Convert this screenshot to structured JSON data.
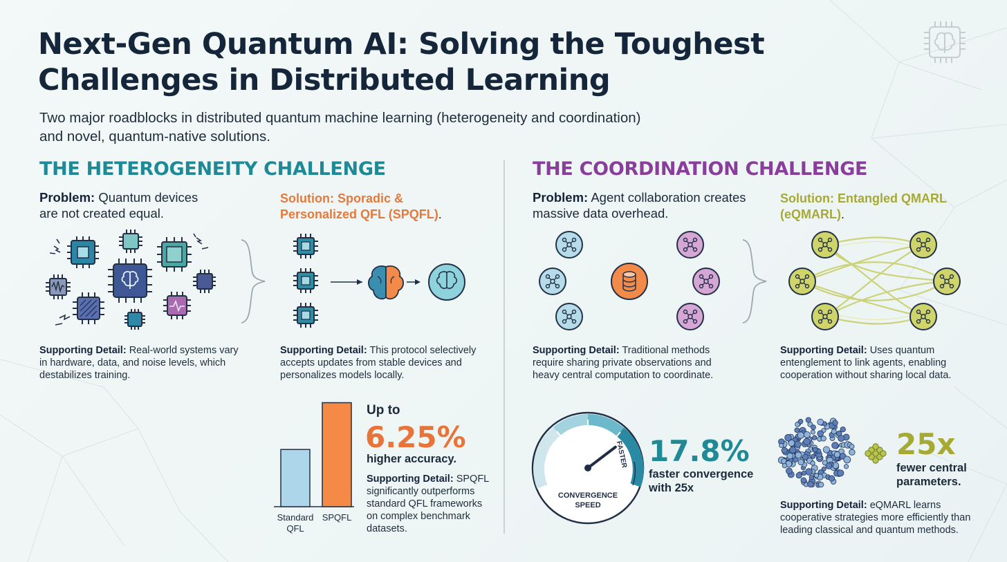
{
  "header": {
    "title": "Next-Gen Quantum AI: Solving the Toughest Challenges in Distributed Learning",
    "subtitle": "Two major roadblocks in distributed quantum machine learning (heterogeneity and coordination) and novel, quantum-native solutions."
  },
  "heterogeneity": {
    "title": "THE HETEROGENEITY CHALLENGE",
    "problem": {
      "label": "Problem:",
      "text": "Quantum devices are not created equal."
    },
    "problem_detail": {
      "label": "Supporting Detail:",
      "text": "Real-world systems vary in hardware, data, and noise levels, which destabilizes training."
    },
    "solution": {
      "title": "Solution: Sporadic & Personalized QFL (SPQFL)",
      "end": "."
    },
    "solution_detail": {
      "label": "Supporting Detail:",
      "text": "This protocol selectively accepts updates from stable devices and personalizes models locally."
    },
    "stat": {
      "prefix": "Up to",
      "value": "6.25%",
      "label": "higher accuracy."
    },
    "stat_detail": {
      "label": "Supporting Detail:",
      "text": "SPQFL significantly outperforms standard QFL frameworks on complex benchmark datasets."
    }
  },
  "coordination": {
    "title": "THE COORDINATION CHALLENGE",
    "problem": {
      "label": "Problem:",
      "text": "Agent collaboration creates massive data overhead."
    },
    "problem_detail": {
      "label": "Supporting Detail:",
      "text": "Traditional methods require sharing private observations and heavy central computation to coordinate."
    },
    "solution": {
      "title": "Solution: Entangled QMARL (eQMARL)",
      "end": "."
    },
    "solution_detail": {
      "label": "Supporting Detail:",
      "text": "Uses quantum entenglement to link agents, enabling cooperation without sharing local data."
    },
    "gauge": {
      "label_line1": "CONVERGENCE",
      "label_line2": "SPEED",
      "arrow_label": "FASTER",
      "level": 0.72
    },
    "stat1": {
      "value": "17.8%",
      "label_line1": "faster convergence",
      "label_line2": "with 25x"
    },
    "stat2": {
      "value": "25x",
      "label_line1": "fewer central",
      "label_line2": "parameters."
    },
    "stat2_detail": {
      "label": "Supporting Detail:",
      "text": "eQMARL learns cooperative strategies more efficiently than leading classical and quantum methods."
    }
  },
  "chart_data": {
    "type": "bar",
    "categories": [
      "Standard QFL",
      "SPQFL"
    ],
    "category_lines": [
      [
        "Standard",
        "QFL"
      ],
      [
        "SPQFL"
      ]
    ],
    "values": [
      0.55,
      1.0
    ],
    "ylim": [
      0,
      1.05
    ],
    "colors": [
      "#aed6ea",
      "#f58a46"
    ],
    "grid": false
  },
  "colors": {
    "teal": "#1f8a96",
    "purple": "#8a3e9c",
    "orange": "#e37a3c",
    "olive": "#a7a935",
    "navy": "#15263a"
  },
  "icons": [
    "chip-icon",
    "brain-chip-icon",
    "noise-spark-icon",
    "brain-icon",
    "agent-node-icon",
    "database-icon",
    "brace-icon",
    "gauge-icon",
    "parameter-cluster-icon"
  ]
}
